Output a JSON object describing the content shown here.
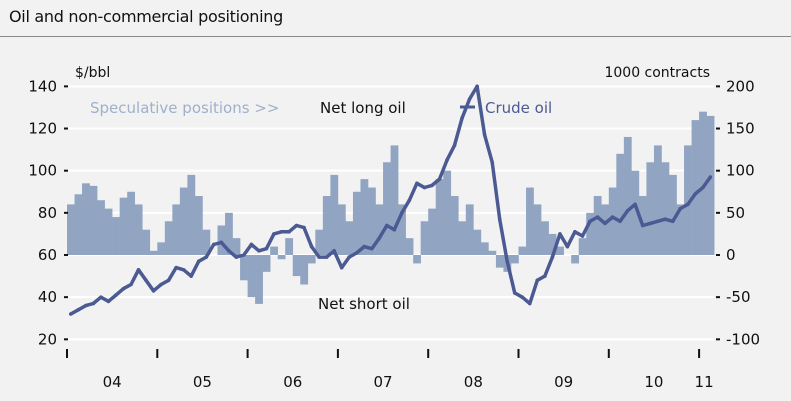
{
  "title": "Oil and non-commercial positioning",
  "chart_data": {
    "type": "bar+line",
    "left_axis": {
      "label": "$/bbl",
      "ticks": [
        20,
        40,
        60,
        80,
        100,
        120,
        140
      ],
      "range": [
        20,
        140
      ]
    },
    "right_axis": {
      "label": "1000 contracts",
      "ticks": [
        "-100",
        "-50",
        "0",
        "50",
        "100",
        "150",
        "200"
      ],
      "range": [
        -100,
        200
      ]
    },
    "x_tick_labels": [
      "04",
      "05",
      "06",
      "07",
      "08",
      "09",
      "10",
      "11"
    ],
    "annotations": {
      "speculative": "Speculative positions >>",
      "net_long": "Net long oil",
      "net_short": "Net short oil",
      "crude": "Crude oil"
    },
    "x_start": "2004-01",
    "frequency": "monthly",
    "grid": true,
    "series": [
      {
        "name": "Speculative positions",
        "axis": "right",
        "type": "bar",
        "color": "#91a5c3",
        "values": [
          60,
          72,
          85,
          82,
          65,
          55,
          45,
          68,
          75,
          60,
          30,
          5,
          15,
          40,
          60,
          80,
          95,
          70,
          30,
          0,
          35,
          50,
          20,
          -30,
          -50,
          -58,
          -20,
          10,
          -5,
          20,
          -25,
          -35,
          -10,
          30,
          70,
          95,
          60,
          40,
          75,
          90,
          80,
          60,
          110,
          130,
          60,
          20,
          -10,
          40,
          55,
          90,
          100,
          70,
          40,
          60,
          30,
          15,
          5,
          -15,
          -20,
          -10,
          10,
          80,
          60,
          40,
          25,
          10,
          0,
          -10,
          20,
          50,
          70,
          60,
          80,
          120,
          140,
          100,
          70,
          110,
          130,
          110,
          95,
          60,
          130,
          160,
          170,
          165
        ]
      },
      {
        "name": "Crude oil",
        "axis": "left",
        "type": "line",
        "color": "#4b5a92",
        "values": [
          32,
          34,
          36,
          37,
          40,
          38,
          41,
          44,
          46,
          53,
          48,
          43,
          46,
          48,
          54,
          53,
          50,
          57,
          59,
          65,
          66,
          62,
          59,
          60,
          65,
          62,
          63,
          70,
          71,
          71,
          74,
          73,
          64,
          59,
          59,
          62,
          54,
          59,
          61,
          64,
          63,
          68,
          74,
          72,
          80,
          86,
          94,
          92,
          93,
          96,
          105,
          112,
          125,
          134,
          140,
          117,
          104,
          77,
          57,
          42,
          40,
          37,
          48,
          50,
          59,
          70,
          64,
          71,
          69,
          76,
          78,
          75,
          78,
          76,
          81,
          84,
          74,
          75,
          76,
          77,
          76,
          82,
          84,
          89,
          92,
          97
        ]
      }
    ]
  }
}
